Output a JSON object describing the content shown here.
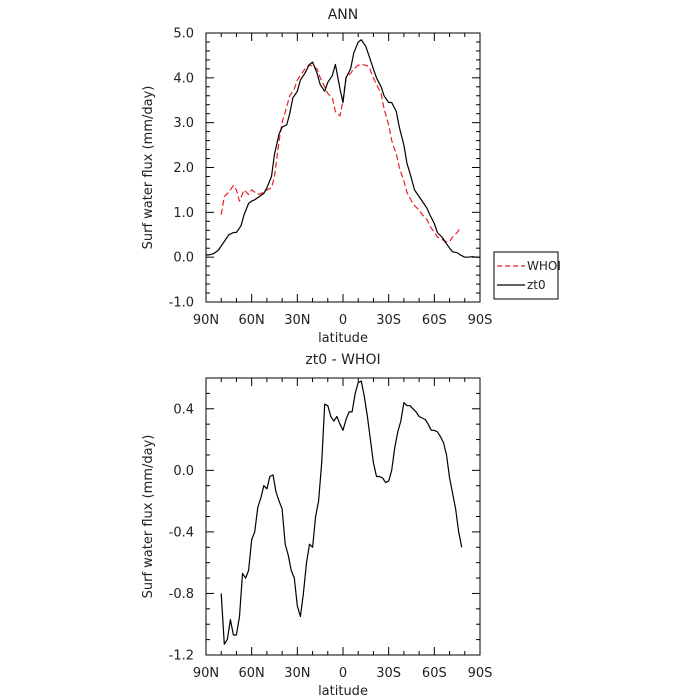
{
  "chart_data": [
    {
      "type": "line",
      "title": "ANN",
      "xlabel": "latitude",
      "ylabel": "Surf water flux (mm/day)",
      "xlim": [
        90,
        -90
      ],
      "ylim": [
        -1,
        5
      ],
      "x_ticks": [
        90,
        60,
        30,
        0,
        -30,
        -60,
        -90
      ],
      "x_tick_labels": [
        "90N",
        "60N",
        "30N",
        "0",
        "30S",
        "60S",
        "90S"
      ],
      "y_ticks": [
        -1,
        0,
        1,
        2,
        3,
        4,
        5
      ],
      "y_tick_labels": [
        "-1.0",
        "0.0",
        "1.0",
        "2.0",
        "3.0",
        "4.0",
        "5.0"
      ],
      "legend_position": "right",
      "series": [
        {
          "name": "WHOI",
          "color": "#e8202a",
          "dash": "dashed",
          "x": [
            80,
            78,
            75,
            72,
            70,
            68,
            65,
            62,
            60,
            58,
            55,
            52,
            50,
            47,
            45,
            42,
            40,
            37,
            35,
            32,
            30,
            27,
            25,
            22,
            20,
            17,
            15,
            12,
            10,
            7,
            5,
            2,
            0,
            -2,
            -5,
            -7,
            -10,
            -12,
            -15,
            -17,
            -20,
            -22,
            -25,
            -27,
            -30,
            -32,
            -35,
            -37,
            -40,
            -42,
            -45,
            -47,
            -50,
            -52,
            -55,
            -57,
            -60,
            -62,
            -65,
            -67,
            -70,
            -72,
            -75,
            -77
          ],
          "y": [
            0.95,
            1.35,
            1.45,
            1.6,
            1.5,
            1.25,
            1.5,
            1.4,
            1.5,
            1.45,
            1.4,
            1.45,
            1.5,
            1.55,
            1.8,
            2.6,
            3.0,
            3.35,
            3.6,
            3.75,
            3.95,
            4.1,
            4.2,
            4.3,
            4.25,
            4.2,
            4.0,
            3.8,
            3.65,
            3.55,
            3.25,
            3.15,
            3.5,
            4.0,
            4.1,
            4.2,
            4.28,
            4.3,
            4.28,
            4.25,
            4.0,
            3.85,
            3.65,
            3.3,
            2.95,
            2.6,
            2.3,
            2.0,
            1.7,
            1.45,
            1.25,
            1.15,
            1.05,
            0.95,
            0.85,
            0.7,
            0.55,
            0.45,
            0.4,
            0.35,
            0.35,
            0.45,
            0.55,
            0.65
          ]
        },
        {
          "name": "zt0",
          "color": "#000000",
          "dash": "solid",
          "x": [
            90,
            88,
            85,
            82,
            80,
            78,
            75,
            72,
            70,
            67,
            65,
            62,
            60,
            58,
            55,
            52,
            50,
            47,
            45,
            42,
            40,
            37,
            35,
            33,
            30,
            28,
            25,
            22,
            20,
            17,
            15,
            12,
            10,
            7,
            5,
            2,
            0,
            -2,
            -5,
            -7,
            -10,
            -12,
            -15,
            -17,
            -20,
            -22,
            -25,
            -27,
            -30,
            -32,
            -35,
            -37,
            -40,
            -42,
            -45,
            -47,
            -50,
            -52,
            -55,
            -57,
            -60,
            -62,
            -65,
            -67,
            -70,
            -72,
            -75,
            -77,
            -80,
            -82,
            -85,
            -88,
            -90
          ],
          "y": [
            0.05,
            0.05,
            0.08,
            0.15,
            0.25,
            0.35,
            0.5,
            0.55,
            0.55,
            0.7,
            0.95,
            1.2,
            1.25,
            1.28,
            1.35,
            1.42,
            1.55,
            1.8,
            2.3,
            2.75,
            2.9,
            2.95,
            3.2,
            3.55,
            3.7,
            3.95,
            4.1,
            4.3,
            4.35,
            4.1,
            3.85,
            3.7,
            3.9,
            4.05,
            4.3,
            3.75,
            3.45,
            4.0,
            4.2,
            4.55,
            4.8,
            4.85,
            4.7,
            4.5,
            4.2,
            4.0,
            3.8,
            3.6,
            3.45,
            3.45,
            3.25,
            2.9,
            2.5,
            2.1,
            1.75,
            1.5,
            1.35,
            1.25,
            1.1,
            0.95,
            0.75,
            0.55,
            0.45,
            0.35,
            0.2,
            0.12,
            0.1,
            0.05,
            0.0,
            0.0,
            0.01,
            0.0,
            0.0
          ]
        }
      ]
    },
    {
      "type": "line",
      "title": "zt0 - WHOI",
      "xlabel": "latitude",
      "ylabel": "Surf water flux (mm/day)",
      "xlim": [
        90,
        -90
      ],
      "ylim": [
        -1.2,
        0.6
      ],
      "x_ticks": [
        90,
        60,
        30,
        0,
        -30,
        -60,
        -90
      ],
      "x_tick_labels": [
        "90N",
        "60N",
        "30N",
        "0",
        "30S",
        "60S",
        "90S"
      ],
      "y_ticks": [
        -1.2,
        -0.8,
        -0.4,
        0.0,
        0.4
      ],
      "y_tick_labels": [
        "-1.2",
        "-0.8",
        "-0.4",
        "0.0",
        "0.4"
      ],
      "series": [
        {
          "name": "",
          "color": "#000000",
          "dash": "solid",
          "x": [
            80,
            78,
            76,
            74,
            72,
            70,
            68,
            66,
            64,
            62,
            60,
            58,
            56,
            54,
            52,
            50,
            48,
            46,
            44,
            42,
            40,
            38,
            36,
            34,
            32,
            30,
            28,
            26,
            24,
            22,
            20,
            18,
            16,
            14,
            12,
            10,
            8,
            6,
            4,
            2,
            0,
            -2,
            -4,
            -6,
            -8,
            -10,
            -12,
            -14,
            -16,
            -18,
            -20,
            -22,
            -24,
            -26,
            -28,
            -30,
            -32,
            -34,
            -36,
            -38,
            -40,
            -42,
            -44,
            -46,
            -48,
            -50,
            -52,
            -54,
            -56,
            -58,
            -60,
            -62,
            -64,
            -66,
            -68,
            -70,
            -72,
            -74,
            -76,
            -78
          ],
          "y": [
            -0.8,
            -1.13,
            -1.1,
            -0.97,
            -1.07,
            -1.07,
            -0.95,
            -0.67,
            -0.7,
            -0.65,
            -0.45,
            -0.4,
            -0.24,
            -0.18,
            -0.1,
            -0.12,
            -0.04,
            -0.03,
            -0.14,
            -0.2,
            -0.25,
            -0.48,
            -0.55,
            -0.65,
            -0.7,
            -0.88,
            -0.95,
            -0.8,
            -0.6,
            -0.48,
            -0.5,
            -0.3,
            -0.2,
            0.05,
            0.43,
            0.42,
            0.35,
            0.32,
            0.35,
            0.3,
            0.26,
            0.33,
            0.38,
            0.38,
            0.5,
            0.57,
            0.58,
            0.48,
            0.35,
            0.2,
            0.05,
            -0.04,
            -0.04,
            -0.05,
            -0.08,
            -0.07,
            0.0,
            0.15,
            0.25,
            0.32,
            0.44,
            0.42,
            0.42,
            0.4,
            0.38,
            0.35,
            0.34,
            0.33,
            0.3,
            0.26,
            0.26,
            0.25,
            0.22,
            0.18,
            0.1,
            -0.05,
            -0.15,
            -0.25,
            -0.4,
            -0.5
          ]
        }
      ]
    }
  ]
}
